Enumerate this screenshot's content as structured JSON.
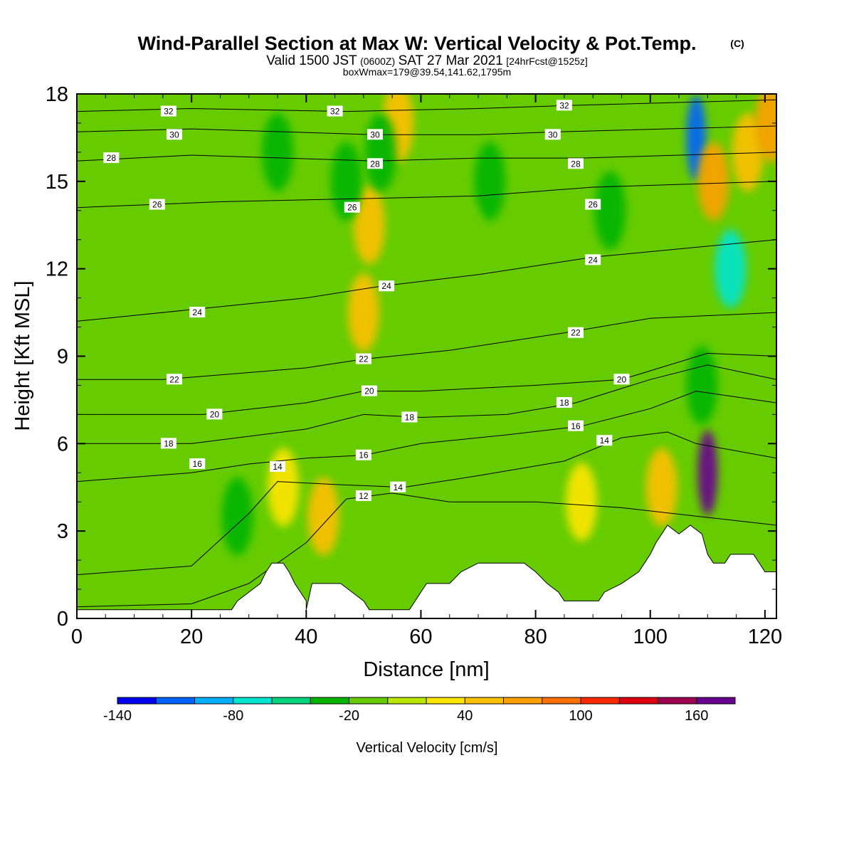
{
  "chart_data": {
    "type": "heatmap",
    "title": "Wind-Parallel Section at Max W: Vertical Velocity & Pot.Temp.",
    "title_mark": "(C)",
    "subtitle_parts": [
      "Valid 1500 JST",
      "(0600Z)",
      "SAT 27 Mar 2021",
      "[24hrFcst@1525z]"
    ],
    "subtitle_line2": "boxWmax=179@39.54,141.62,1795m",
    "xlabel": "Distance [nm]",
    "ylabel": "Height [Kft MSL]",
    "xlim": [
      0,
      122
    ],
    "ylim": [
      0,
      18
    ],
    "x_ticks": [
      0,
      20,
      40,
      60,
      80,
      100,
      120
    ],
    "y_ticks": [
      0,
      3,
      6,
      9,
      12,
      15,
      18
    ],
    "colorbar": {
      "title": "Vertical Velocity [cm/s]",
      "min": -140,
      "max": 180,
      "step": 20,
      "tick_labels": [
        -140,
        -80,
        -20,
        40,
        100,
        160
      ],
      "colors": [
        "#0000f0",
        "#0062ff",
        "#00b0ff",
        "#00e4d0",
        "#00d480",
        "#00b400",
        "#66cc00",
        "#bbe600",
        "#ffe600",
        "#ffc000",
        "#ffa000",
        "#ff7000",
        "#ff2800",
        "#e00010",
        "#a00050",
        "#680090"
      ]
    },
    "terrain": [
      [
        0,
        0.3
      ],
      [
        27,
        0.3
      ],
      [
        28,
        0.6
      ],
      [
        30,
        0.9
      ],
      [
        32,
        1.2
      ],
      [
        33,
        1.6
      ],
      [
        34,
        1.9
      ],
      [
        36,
        1.9
      ],
      [
        37,
        1.6
      ],
      [
        38,
        1.2
      ],
      [
        39,
        0.9
      ],
      [
        40,
        0.6
      ],
      [
        40,
        0.3
      ],
      [
        41,
        1.2
      ],
      [
        46,
        1.2
      ],
      [
        48,
        0.9
      ],
      [
        50,
        0.6
      ],
      [
        51,
        0.3
      ],
      [
        58,
        0.3
      ],
      [
        59,
        0.6
      ],
      [
        60,
        0.9
      ],
      [
        61,
        1.2
      ],
      [
        65,
        1.2
      ],
      [
        67,
        1.6
      ],
      [
        70,
        1.9
      ],
      [
        78,
        1.9
      ],
      [
        80,
        1.6
      ],
      [
        82,
        1.2
      ],
      [
        84,
        0.9
      ],
      [
        85,
        0.6
      ],
      [
        91,
        0.6
      ],
      [
        92,
        0.9
      ],
      [
        95,
        1.2
      ],
      [
        98,
        1.6
      ],
      [
        99,
        1.9
      ],
      [
        100,
        2.2
      ],
      [
        101,
        2.6
      ],
      [
        102,
        2.9
      ],
      [
        103,
        3.2
      ],
      [
        105,
        2.9
      ],
      [
        107,
        3.2
      ],
      [
        109,
        2.9
      ],
      [
        110,
        2.2
      ],
      [
        111,
        1.9
      ],
      [
        113,
        1.9
      ],
      [
        114,
        2.2
      ],
      [
        118,
        2.2
      ],
      [
        120,
        1.6
      ],
      [
        122,
        1.6
      ]
    ],
    "w_features": [
      {
        "x": 50,
        "y": 10.5,
        "w": 45
      },
      {
        "x": 51,
        "y": 13.5,
        "w": 40
      },
      {
        "x": 56,
        "y": 17,
        "w": 40
      },
      {
        "x": 53,
        "y": 16,
        "w": -40
      },
      {
        "x": 47,
        "y": 15,
        "w": -25
      },
      {
        "x": 72,
        "y": 15,
        "w": -25
      },
      {
        "x": 68,
        "y": 13,
        "w": -20
      },
      {
        "x": 93,
        "y": 14,
        "w": -25
      },
      {
        "x": 35,
        "y": 16,
        "w": -25
      },
      {
        "x": 108,
        "y": 16.5,
        "w": -120
      },
      {
        "x": 111,
        "y": 15,
        "w": 60
      },
      {
        "x": 110,
        "y": 5,
        "w": 179
      },
      {
        "x": 109,
        "y": 8,
        "w": -40
      },
      {
        "x": 114,
        "y": 12,
        "w": -80
      },
      {
        "x": 117,
        "y": 16,
        "w": 40
      },
      {
        "x": 121,
        "y": 17,
        "w": 60
      },
      {
        "x": 43,
        "y": 3.5,
        "w": 45
      },
      {
        "x": 36,
        "y": 4.5,
        "w": 30
      },
      {
        "x": 28,
        "y": 3.5,
        "w": -30
      },
      {
        "x": 102,
        "y": 4.5,
        "w": 40
      },
      {
        "x": 88,
        "y": 4,
        "w": 30
      }
    ],
    "theta_contours": [
      {
        "label": "12",
        "pts": [
          [
            0,
            0.4
          ],
          [
            20,
            0.5
          ],
          [
            30,
            1.2
          ],
          [
            40,
            2.6
          ],
          [
            47,
            4.1
          ],
          [
            55,
            4.3
          ],
          [
            65,
            4.0
          ],
          [
            80,
            4.0
          ],
          [
            95,
            3.8
          ],
          [
            104,
            3.6
          ],
          [
            122,
            3.2
          ]
        ]
      },
      {
        "label": "14",
        "pts": [
          [
            0,
            1.5
          ],
          [
            20,
            1.8
          ],
          [
            30,
            3.6
          ],
          [
            35,
            4.7
          ],
          [
            45,
            4.6
          ],
          [
            57,
            4.5
          ],
          [
            70,
            4.9
          ],
          [
            85,
            5.4
          ],
          [
            95,
            6.2
          ],
          [
            103,
            6.4
          ],
          [
            108,
            6.0
          ],
          [
            122,
            5.5
          ]
        ]
      },
      {
        "label": "16",
        "pts": [
          [
            0,
            4.7
          ],
          [
            20,
            5.0
          ],
          [
            30,
            5.3
          ],
          [
            40,
            5.5
          ],
          [
            50,
            5.6
          ],
          [
            60,
            6.0
          ],
          [
            75,
            6.3
          ],
          [
            88,
            6.6
          ],
          [
            100,
            7.2
          ],
          [
            108,
            7.8
          ],
          [
            122,
            7.4
          ]
        ]
      },
      {
        "label": "18",
        "pts": [
          [
            0,
            6.0
          ],
          [
            20,
            6.0
          ],
          [
            40,
            6.5
          ],
          [
            50,
            7.0
          ],
          [
            60,
            6.9
          ],
          [
            75,
            7.0
          ],
          [
            87,
            7.4
          ],
          [
            100,
            8.2
          ],
          [
            110,
            8.7
          ],
          [
            122,
            8.2
          ]
        ]
      },
      {
        "label": "20",
        "pts": [
          [
            0,
            7.0
          ],
          [
            22,
            7.0
          ],
          [
            40,
            7.4
          ],
          [
            50,
            7.8
          ],
          [
            60,
            7.8
          ],
          [
            80,
            8.0
          ],
          [
            95,
            8.2
          ],
          [
            110,
            9.1
          ],
          [
            122,
            9.0
          ]
        ]
      },
      {
        "label": "22",
        "pts": [
          [
            0,
            8.2
          ],
          [
            15,
            8.2
          ],
          [
            40,
            8.6
          ],
          [
            50,
            8.9
          ],
          [
            65,
            9.2
          ],
          [
            85,
            9.8
          ],
          [
            100,
            10.3
          ],
          [
            122,
            10.5
          ]
        ]
      },
      {
        "label": "24",
        "pts": [
          [
            0,
            10.2
          ],
          [
            20,
            10.6
          ],
          [
            40,
            11.0
          ],
          [
            53,
            11.4
          ],
          [
            70,
            11.8
          ],
          [
            90,
            12.4
          ],
          [
            122,
            13.0
          ]
        ]
      },
      {
        "label": "26",
        "pts": [
          [
            0,
            14.1
          ],
          [
            25,
            14.3
          ],
          [
            48,
            14.4
          ],
          [
            70,
            14.5
          ],
          [
            90,
            14.8
          ],
          [
            122,
            15.0
          ]
        ]
      },
      {
        "label": "28",
        "pts": [
          [
            0,
            15.7
          ],
          [
            20,
            15.9
          ],
          [
            52,
            15.7
          ],
          [
            70,
            15.8
          ],
          [
            88,
            15.8
          ],
          [
            122,
            16.0
          ]
        ]
      },
      {
        "label": "30",
        "pts": [
          [
            0,
            16.7
          ],
          [
            20,
            16.8
          ],
          [
            52,
            16.6
          ],
          [
            70,
            16.6
          ],
          [
            84,
            16.7
          ],
          [
            122,
            16.9
          ]
        ]
      },
      {
        "label": "32",
        "pts": [
          [
            0,
            17.4
          ],
          [
            20,
            17.5
          ],
          [
            47,
            17.4
          ],
          [
            70,
            17.5
          ],
          [
            85,
            17.6
          ],
          [
            122,
            17.8
          ]
        ]
      }
    ],
    "contour_labels": [
      {
        "text": "32",
        "x": 16,
        "y": 17.4
      },
      {
        "text": "32",
        "x": 45,
        "y": 17.4
      },
      {
        "text": "32",
        "x": 85,
        "y": 17.6
      },
      {
        "text": "30",
        "x": 17,
        "y": 16.6
      },
      {
        "text": "30",
        "x": 52,
        "y": 16.6
      },
      {
        "text": "30",
        "x": 83,
        "y": 16.6
      },
      {
        "text": "28",
        "x": 6,
        "y": 15.8
      },
      {
        "text": "28",
        "x": 52,
        "y": 15.6
      },
      {
        "text": "28",
        "x": 87,
        "y": 15.6
      },
      {
        "text": "26",
        "x": 14,
        "y": 14.2
      },
      {
        "text": "26",
        "x": 48,
        "y": 14.1
      },
      {
        "text": "26",
        "x": 90,
        "y": 14.2
      },
      {
        "text": "24",
        "x": 21,
        "y": 10.5
      },
      {
        "text": "24",
        "x": 54,
        "y": 11.4
      },
      {
        "text": "24",
        "x": 90,
        "y": 12.3
      },
      {
        "text": "22",
        "x": 17,
        "y": 8.2
      },
      {
        "text": "22",
        "x": 50,
        "y": 8.9
      },
      {
        "text": "22",
        "x": 87,
        "y": 9.8
      },
      {
        "text": "20",
        "x": 24,
        "y": 7.0
      },
      {
        "text": "20",
        "x": 51,
        "y": 7.8
      },
      {
        "text": "20",
        "x": 95,
        "y": 8.2
      },
      {
        "text": "18",
        "x": 16,
        "y": 6.0
      },
      {
        "text": "18",
        "x": 58,
        "y": 6.9
      },
      {
        "text": "18",
        "x": 85,
        "y": 7.4
      },
      {
        "text": "16",
        "x": 21,
        "y": 5.3
      },
      {
        "text": "16",
        "x": 50,
        "y": 5.6
      },
      {
        "text": "16",
        "x": 87,
        "y": 6.6
      },
      {
        "text": "14",
        "x": 35,
        "y": 5.2
      },
      {
        "text": "14",
        "x": 56,
        "y": 4.5
      },
      {
        "text": "14",
        "x": 92,
        "y": 6.1
      },
      {
        "text": "12",
        "x": 50,
        "y": 4.2
      }
    ]
  }
}
